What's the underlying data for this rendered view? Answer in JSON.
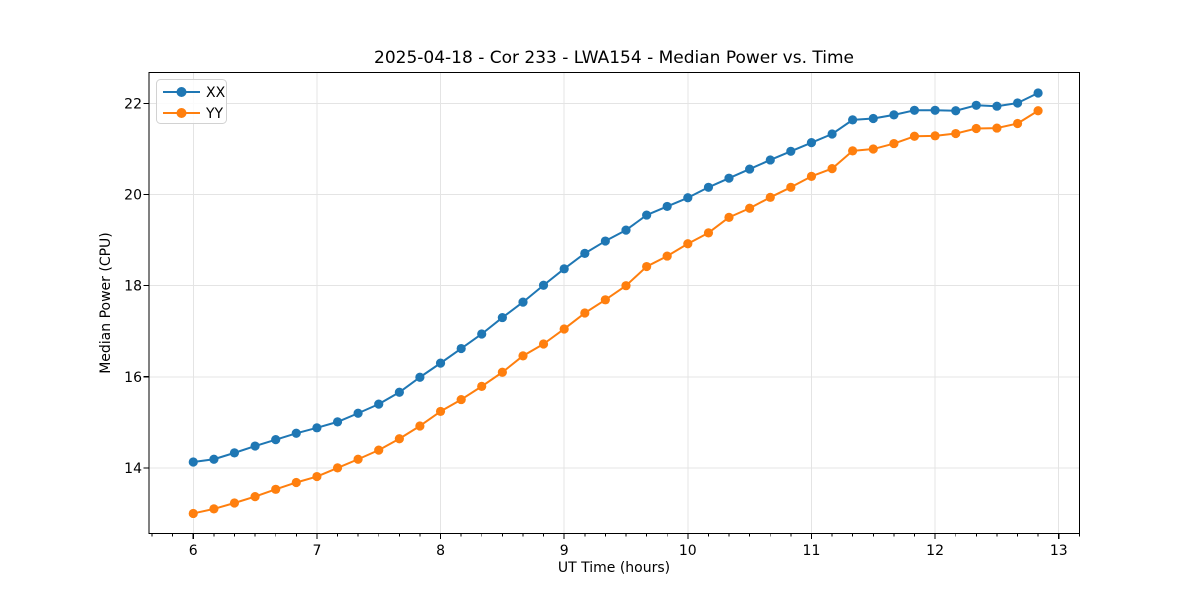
{
  "chart_data": {
    "type": "line",
    "title": "2025-04-18 - Cor 233 - LWA154 - Median Power vs. Time",
    "xlabel": "UT Time (hours)",
    "ylabel": "Median Power (CPU)",
    "xlim": [
      5.642,
      13.168
    ],
    "ylim": [
      12.56,
      22.68
    ],
    "xticks": [
      6,
      7,
      8,
      9,
      10,
      11,
      12,
      13
    ],
    "yticks": [
      14,
      16,
      18,
      20,
      22
    ],
    "x_minor_step": 0.16667,
    "grid": true,
    "legend_position": "upper left",
    "x": [
      6.0,
      6.167,
      6.333,
      6.5,
      6.667,
      6.833,
      7.0,
      7.167,
      7.333,
      7.5,
      7.667,
      7.833,
      8.0,
      8.167,
      8.333,
      8.5,
      8.667,
      8.833,
      9.0,
      9.167,
      9.333,
      9.5,
      9.667,
      9.833,
      10.0,
      10.167,
      10.333,
      10.5,
      10.667,
      10.833,
      11.0,
      11.167,
      11.333,
      11.5,
      11.667,
      11.833,
      12.0,
      12.167,
      12.333,
      12.5,
      12.667,
      12.833
    ],
    "series": [
      {
        "name": "XX",
        "color": "#1f77b4",
        "values": [
          14.13,
          14.19,
          14.33,
          14.48,
          14.62,
          14.76,
          14.88,
          15.01,
          15.2,
          15.4,
          15.66,
          15.99,
          16.3,
          16.62,
          16.94,
          17.3,
          17.64,
          18.01,
          18.37,
          18.71,
          18.98,
          19.22,
          19.55,
          19.74,
          19.93,
          20.16,
          20.36,
          20.56,
          20.76,
          20.95,
          21.14,
          21.33,
          21.64,
          21.67,
          21.75,
          21.85,
          21.85,
          21.84,
          21.96,
          21.94,
          22.01,
          22.23
        ]
      },
      {
        "name": "YY",
        "color": "#ff7f0e",
        "values": [
          13.0,
          13.1,
          13.23,
          13.37,
          13.53,
          13.68,
          13.81,
          14.0,
          14.19,
          14.39,
          14.64,
          14.92,
          15.24,
          15.5,
          15.79,
          16.1,
          16.46,
          16.72,
          17.05,
          17.4,
          17.69,
          18.0,
          18.42,
          18.65,
          18.92,
          19.16,
          19.5,
          19.7,
          19.94,
          20.16,
          20.4,
          20.57,
          20.96,
          21.0,
          21.12,
          21.28,
          21.29,
          21.34,
          21.45,
          21.46,
          21.56,
          21.84
        ]
      }
    ]
  }
}
